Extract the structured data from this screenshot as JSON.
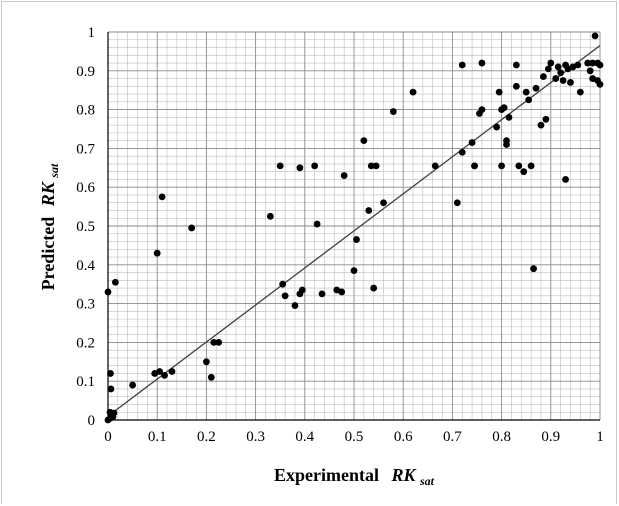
{
  "chart_data": {
    "type": "scatter",
    "xlabel": {
      "prefix": "Experimental",
      "main": "RK",
      "sub": "sat"
    },
    "ylabel": {
      "prefix": "Predicted",
      "main": "RK",
      "sub": "sat"
    },
    "xlim": [
      0,
      1
    ],
    "ylim": [
      0,
      1
    ],
    "x_ticks": [
      "0",
      "0.1",
      "0.2",
      "0.3",
      "0.4",
      "0.5",
      "0.6",
      "0.7",
      "0.8",
      "0.9",
      "1"
    ],
    "y_ticks": [
      "0",
      "0.1",
      "0.2",
      "0.3",
      "0.4",
      "0.5",
      "0.6",
      "0.7",
      "0.8",
      "0.9",
      "1"
    ],
    "grid": true,
    "minor_grid": true,
    "legend": "none",
    "marker_color": "#000000",
    "line_color": "#404040",
    "trend_line": {
      "x": [
        0,
        1
      ],
      "y": [
        0.01,
        0.965
      ]
    },
    "points": [
      [
        0.0,
        0.33
      ],
      [
        0.005,
        0.12
      ],
      [
        0.006,
        0.08
      ],
      [
        0.015,
        0.355
      ],
      [
        0.0,
        0.0
      ],
      [
        0.005,
        0.005
      ],
      [
        0.008,
        0.012
      ],
      [
        0.012,
        0.018
      ],
      [
        0.004,
        0.02
      ],
      [
        0.01,
        0.008
      ],
      [
        0.05,
        0.09
      ],
      [
        0.095,
        0.12
      ],
      [
        0.105,
        0.125
      ],
      [
        0.115,
        0.115
      ],
      [
        0.13,
        0.125
      ],
      [
        0.1,
        0.43
      ],
      [
        0.11,
        0.575
      ],
      [
        0.17,
        0.495
      ],
      [
        0.2,
        0.15
      ],
      [
        0.21,
        0.11
      ],
      [
        0.215,
        0.2
      ],
      [
        0.225,
        0.2
      ],
      [
        0.33,
        0.525
      ],
      [
        0.35,
        0.655
      ],
      [
        0.355,
        0.35
      ],
      [
        0.36,
        0.32
      ],
      [
        0.38,
        0.295
      ],
      [
        0.39,
        0.65
      ],
      [
        0.39,
        0.325
      ],
      [
        0.395,
        0.335
      ],
      [
        0.42,
        0.655
      ],
      [
        0.425,
        0.505
      ],
      [
        0.435,
        0.325
      ],
      [
        0.465,
        0.335
      ],
      [
        0.475,
        0.33
      ],
      [
        0.48,
        0.63
      ],
      [
        0.5,
        0.385
      ],
      [
        0.505,
        0.465
      ],
      [
        0.52,
        0.72
      ],
      [
        0.53,
        0.54
      ],
      [
        0.535,
        0.655
      ],
      [
        0.545,
        0.655
      ],
      [
        0.54,
        0.34
      ],
      [
        0.56,
        0.56
      ],
      [
        0.58,
        0.795
      ],
      [
        0.62,
        0.845
      ],
      [
        0.665,
        0.655
      ],
      [
        0.71,
        0.56
      ],
      [
        0.72,
        0.915
      ],
      [
        0.72,
        0.69
      ],
      [
        0.74,
        0.715
      ],
      [
        0.745,
        0.655
      ],
      [
        0.745,
        0.655
      ],
      [
        0.755,
        0.79
      ],
      [
        0.76,
        0.92
      ],
      [
        0.76,
        0.8
      ],
      [
        0.79,
        0.755
      ],
      [
        0.795,
        0.845
      ],
      [
        0.8,
        0.8
      ],
      [
        0.8,
        0.655
      ],
      [
        0.805,
        0.805
      ],
      [
        0.81,
        0.71
      ],
      [
        0.81,
        0.72
      ],
      [
        0.815,
        0.78
      ],
      [
        0.83,
        0.915
      ],
      [
        0.83,
        0.86
      ],
      [
        0.835,
        0.655
      ],
      [
        0.845,
        0.64
      ],
      [
        0.85,
        0.845
      ],
      [
        0.855,
        0.825
      ],
      [
        0.86,
        0.655
      ],
      [
        0.865,
        0.39
      ],
      [
        0.87,
        0.855
      ],
      [
        0.88,
        0.76
      ],
      [
        0.885,
        0.885
      ],
      [
        0.89,
        0.775
      ],
      [
        0.895,
        0.905
      ],
      [
        0.9,
        0.92
      ],
      [
        0.91,
        0.88
      ],
      [
        0.915,
        0.91
      ],
      [
        0.92,
        0.895
      ],
      [
        0.925,
        0.875
      ],
      [
        0.93,
        0.62
      ],
      [
        0.93,
        0.915
      ],
      [
        0.935,
        0.905
      ],
      [
        0.94,
        0.87
      ],
      [
        0.945,
        0.91
      ],
      [
        0.955,
        0.915
      ],
      [
        0.96,
        0.845
      ],
      [
        0.975,
        0.92
      ],
      [
        0.98,
        0.9
      ],
      [
        0.985,
        0.88
      ],
      [
        0.985,
        0.92
      ],
      [
        0.99,
        0.99
      ],
      [
        0.995,
        0.875
      ],
      [
        0.995,
        0.92
      ],
      [
        1.0,
        0.865
      ],
      [
        1.0,
        0.915
      ]
    ]
  }
}
